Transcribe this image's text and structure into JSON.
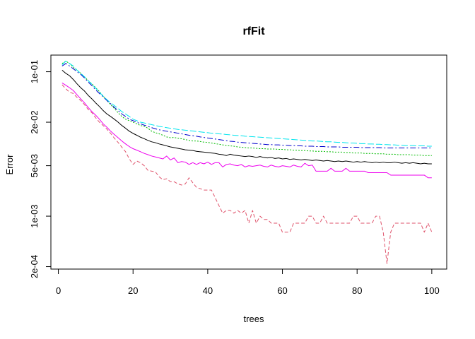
{
  "chart_data": {
    "type": "line",
    "title": "rfFit",
    "xlabel": "trees",
    "ylabel": "Error",
    "y_scale": "log",
    "xlim": [
      -2,
      104
    ],
    "ylim": [
      0.000185,
      0.17
    ],
    "x_ticks": [
      0,
      20,
      40,
      60,
      80,
      100
    ],
    "x_tick_labels": [
      "0",
      "20",
      "40",
      "60",
      "80",
      "100"
    ],
    "y_ticks": [
      0.1,
      0.02,
      0.005,
      0.001,
      0.0002
    ],
    "y_tick_labels": [
      "1e-01",
      "2e-02",
      "5e-03",
      "1e-03",
      "2e-04"
    ],
    "grid": false,
    "x": [
      1,
      2,
      3,
      4,
      5,
      6,
      7,
      8,
      9,
      10,
      11,
      12,
      13,
      14,
      15,
      16,
      17,
      18,
      19,
      20,
      21,
      22,
      23,
      24,
      25,
      26,
      27,
      28,
      29,
      30,
      31,
      32,
      33,
      34,
      35,
      36,
      37,
      38,
      39,
      40,
      41,
      42,
      43,
      44,
      45,
      46,
      47,
      48,
      49,
      50,
      51,
      52,
      53,
      54,
      55,
      56,
      57,
      58,
      59,
      60,
      61,
      62,
      63,
      64,
      65,
      66,
      67,
      68,
      69,
      70,
      71,
      72,
      73,
      74,
      75,
      76,
      77,
      78,
      79,
      80,
      81,
      82,
      83,
      84,
      85,
      86,
      87,
      88,
      89,
      90,
      91,
      92,
      93,
      94,
      95,
      96,
      97,
      98,
      99,
      100
    ],
    "series": [
      {
        "color": "#000000",
        "dash": "solid",
        "values": [
          0.105,
          0.095,
          0.088,
          0.078,
          0.068,
          0.06,
          0.054,
          0.047,
          0.042,
          0.037,
          0.033,
          0.029,
          0.026,
          0.024,
          0.022,
          0.02,
          0.018,
          0.0165,
          0.015,
          0.014,
          0.0132,
          0.0124,
          0.0118,
          0.0112,
          0.0107,
          0.0104,
          0.01,
          0.0097,
          0.0094,
          0.0091,
          0.0089,
          0.0087,
          0.0085,
          0.0083,
          0.0082,
          0.0081,
          0.0079,
          0.0078,
          0.0077,
          0.0076,
          0.0075,
          0.0074,
          0.0072,
          0.0071,
          0.0069,
          0.0072,
          0.007,
          0.0069,
          0.0068,
          0.0067,
          0.0068,
          0.0067,
          0.0065,
          0.0067,
          0.0065,
          0.0064,
          0.0065,
          0.0063,
          0.0064,
          0.0062,
          0.0063,
          0.0061,
          0.0062,
          0.0061,
          0.006,
          0.0061,
          0.006,
          0.0059,
          0.006,
          0.0059,
          0.0058,
          0.0059,
          0.0058,
          0.0057,
          0.0058,
          0.0057,
          0.0058,
          0.0057,
          0.0056,
          0.0057,
          0.0056,
          0.0057,
          0.0056,
          0.0055,
          0.0056,
          0.0055,
          0.0056,
          0.0055,
          0.0055,
          0.0056,
          0.0055,
          0.0054,
          0.0055,
          0.0054,
          0.0055,
          0.0054,
          0.0053,
          0.0054,
          0.0053,
          0.0053
        ]
      },
      {
        "color": "#DF536B",
        "dash": "5,3",
        "values": [
          0.066,
          0.058,
          0.052,
          0.05,
          0.044,
          0.04,
          0.035,
          0.03,
          0.027,
          0.023,
          0.02,
          0.018,
          0.016,
          0.014,
          0.012,
          0.0105,
          0.009,
          0.0078,
          0.0062,
          0.0052,
          0.0058,
          0.0055,
          0.005,
          0.0043,
          0.0042,
          0.0041,
          0.0035,
          0.0032,
          0.0033,
          0.003,
          0.003,
          0.0028,
          0.0027,
          0.0028,
          0.0034,
          0.0029,
          0.0025,
          0.0024,
          0.0023,
          0.0023,
          0.0023,
          0.0018,
          0.0014,
          0.0011,
          0.0012,
          0.0012,
          0.0011,
          0.0012,
          0.0011,
          0.0012,
          0.0008,
          0.0012,
          0.0008,
          0.001,
          0.0009,
          0.0009,
          0.0008,
          0.0008,
          0.0008,
          0.0006,
          0.0006,
          0.0006,
          0.0008,
          0.0008,
          0.0008,
          0.0008,
          0.001,
          0.001,
          0.0008,
          0.0008,
          0.001,
          0.0008,
          0.0008,
          0.0008,
          0.0008,
          0.0008,
          0.0008,
          0.0008,
          0.001,
          0.001,
          0.0008,
          0.0008,
          0.0008,
          0.0008,
          0.001,
          0.001,
          0.0006,
          0.00022,
          0.0006,
          0.0008,
          0.0008,
          0.0008,
          0.0008,
          0.0008,
          0.0008,
          0.0008,
          0.0008,
          0.0006,
          0.0008,
          0.0006
        ]
      },
      {
        "color": "#00BB00",
        "dash": "2,2",
        "values": [
          0.13,
          0.14,
          0.13,
          0.115,
          0.105,
          0.095,
          0.085,
          0.075,
          0.068,
          0.06,
          0.053,
          0.046,
          0.04,
          0.035,
          0.031,
          0.027,
          0.024,
          0.022,
          0.021,
          0.02,
          0.019,
          0.018,
          0.0175,
          0.0165,
          0.015,
          0.0143,
          0.0138,
          0.0132,
          0.0125,
          0.0122,
          0.0123,
          0.012,
          0.0118,
          0.0115,
          0.0112,
          0.011,
          0.011,
          0.0108,
          0.0106,
          0.0105,
          0.0103,
          0.0101,
          0.0099,
          0.0097,
          0.0095,
          0.0094,
          0.0093,
          0.0091,
          0.009,
          0.0089,
          0.0088,
          0.0088,
          0.0087,
          0.0086,
          0.0086,
          0.0085,
          0.0085,
          0.0085,
          0.0084,
          0.0084,
          0.0083,
          0.0083,
          0.0082,
          0.0082,
          0.0081,
          0.0081,
          0.008,
          0.008,
          0.0079,
          0.0079,
          0.0079,
          0.0078,
          0.0078,
          0.0077,
          0.0077,
          0.0077,
          0.0076,
          0.0076,
          0.0075,
          0.0075,
          0.0075,
          0.0074,
          0.0074,
          0.0074,
          0.0073,
          0.0073,
          0.0073,
          0.0072,
          0.0072,
          0.0072,
          0.0071,
          0.0071,
          0.0071,
          0.0071,
          0.007,
          0.007,
          0.007,
          0.0069,
          0.0069,
          0.0069
        ]
      },
      {
        "color": "#0000CC",
        "dash": "8,3,2,3",
        "values": [
          0.12,
          0.13,
          0.12,
          0.11,
          0.1,
          0.092,
          0.082,
          0.072,
          0.064,
          0.056,
          0.05,
          0.045,
          0.04,
          0.036,
          0.032,
          0.029,
          0.026,
          0.024,
          0.022,
          0.021,
          0.02,
          0.019,
          0.0182,
          0.0175,
          0.0168,
          0.0162,
          0.0157,
          0.0153,
          0.015,
          0.0147,
          0.0144,
          0.0141,
          0.0138,
          0.0135,
          0.0132,
          0.013,
          0.0128,
          0.0125,
          0.0123,
          0.0121,
          0.0119,
          0.0117,
          0.0115,
          0.0113,
          0.0111,
          0.0109,
          0.0108,
          0.0106,
          0.0105,
          0.0104,
          0.0103,
          0.0102,
          0.0101,
          0.01,
          0.0099,
          0.0098,
          0.0098,
          0.0097,
          0.0097,
          0.0096,
          0.0096,
          0.0095,
          0.0095,
          0.0094,
          0.0094,
          0.0093,
          0.0093,
          0.0093,
          0.0092,
          0.0092,
          0.0092,
          0.0091,
          0.0091,
          0.0091,
          0.0091,
          0.009,
          0.009,
          0.009,
          0.009,
          0.009,
          0.0089,
          0.0089,
          0.0089,
          0.0089,
          0.0089,
          0.0089,
          0.0088,
          0.0088,
          0.0088,
          0.0088,
          0.0088,
          0.0088,
          0.0088,
          0.0088,
          0.0088,
          0.0088,
          0.0088,
          0.0088,
          0.0088,
          0.0088
        ]
      },
      {
        "color": "#00E5EE",
        "dash": "9,3",
        "values": [
          0.125,
          0.14,
          0.13,
          0.12,
          0.105,
          0.095,
          0.085,
          0.075,
          0.067,
          0.059,
          0.052,
          0.046,
          0.041,
          0.037,
          0.034,
          0.031,
          0.028,
          0.026,
          0.024,
          0.022,
          0.021,
          0.02,
          0.0195,
          0.019,
          0.0185,
          0.018,
          0.0175,
          0.0172,
          0.0168,
          0.0165,
          0.0162,
          0.0159,
          0.0157,
          0.0155,
          0.0153,
          0.0151,
          0.0149,
          0.0147,
          0.0145,
          0.0143,
          0.0141,
          0.014,
          0.0138,
          0.0137,
          0.0135,
          0.0134,
          0.0132,
          0.0131,
          0.013,
          0.0128,
          0.0127,
          0.0126,
          0.0125,
          0.0124,
          0.0123,
          0.0122,
          0.0121,
          0.012,
          0.0119,
          0.0118,
          0.0117,
          0.0116,
          0.0115,
          0.0114,
          0.0113,
          0.0112,
          0.0111,
          0.011,
          0.011,
          0.0109,
          0.0108,
          0.0107,
          0.0107,
          0.0106,
          0.0105,
          0.0105,
          0.0104,
          0.0103,
          0.0103,
          0.0102,
          0.0101,
          0.0101,
          0.01,
          0.01,
          0.0099,
          0.0099,
          0.0098,
          0.0098,
          0.0097,
          0.0097,
          0.0096,
          0.0096,
          0.0095,
          0.0095,
          0.0095,
          0.0094,
          0.0094,
          0.0094,
          0.0093,
          0.0093
        ]
      },
      {
        "color": "#EE00EE",
        "dash": "solid",
        "values": [
          0.07,
          0.065,
          0.06,
          0.055,
          0.048,
          0.042,
          0.037,
          0.032,
          0.028,
          0.025,
          0.022,
          0.019,
          0.017,
          0.015,
          0.0135,
          0.0122,
          0.011,
          0.01,
          0.0092,
          0.0086,
          0.0082,
          0.0078,
          0.0074,
          0.0071,
          0.0068,
          0.0066,
          0.0064,
          0.0062,
          0.0068,
          0.006,
          0.0064,
          0.0055,
          0.0057,
          0.0056,
          0.0052,
          0.0055,
          0.0052,
          0.0055,
          0.0053,
          0.0056,
          0.0052,
          0.0055,
          0.0055,
          0.0048,
          0.0052,
          0.0053,
          0.0051,
          0.005,
          0.0052,
          0.0048,
          0.005,
          0.0049,
          0.005,
          0.0051,
          0.0049,
          0.0048,
          0.0051,
          0.0049,
          0.0048,
          0.005,
          0.0049,
          0.0048,
          0.0051,
          0.0049,
          0.0048,
          0.0054,
          0.005,
          0.0051,
          0.0042,
          0.0042,
          0.0042,
          0.0042,
          0.0046,
          0.0042,
          0.0042,
          0.0042,
          0.0046,
          0.0042,
          0.0042,
          0.0042,
          0.0042,
          0.0042,
          0.004,
          0.004,
          0.004,
          0.004,
          0.004,
          0.004,
          0.0037,
          0.0037,
          0.0037,
          0.0037,
          0.0037,
          0.0037,
          0.0037,
          0.0037,
          0.0037,
          0.0037,
          0.0034,
          0.0034
        ]
      }
    ]
  }
}
